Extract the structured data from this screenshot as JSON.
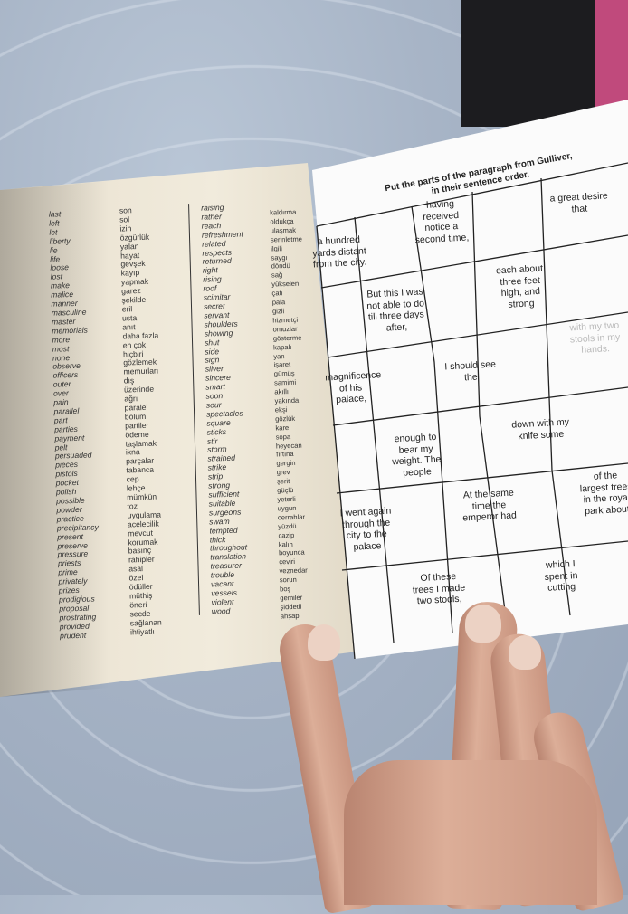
{
  "left_page": {
    "column1_english": [
      "last",
      "left",
      "let",
      "liberty",
      "lie",
      "life",
      "loose",
      "lost",
      "make",
      "malice",
      "manner",
      "masculine",
      "master",
      "memorials",
      "more",
      "most",
      "none",
      "observe",
      "officers",
      "outer",
      "over",
      "pain",
      "parallel",
      "part",
      "parties",
      "payment",
      "pelt",
      "persuaded",
      "pieces",
      "pistols",
      "pocket",
      "polish",
      "possible",
      "powder",
      "practice",
      "precipitancy",
      "present",
      "preserve",
      "pressure",
      "priests",
      "prime",
      "privately",
      "prizes",
      "prodigious",
      "proposal",
      "prostrating",
      "provided",
      "prudent"
    ],
    "column1_turkish": [
      "son",
      "sol",
      "izin",
      "özgürlük",
      "yalan",
      "hayat",
      "gevşek",
      "kayıp",
      "yapmak",
      "garez",
      "şekilde",
      "eril",
      "usta",
      "anıt",
      "daha fazla",
      "en çok",
      "hiçbiri",
      "gözlemek",
      "memurları",
      "dış",
      "üzerinde",
      "ağrı",
      "paralel",
      "bölüm",
      "partiler",
      "ödeme",
      "taşlamak",
      "ikna",
      "parçalar",
      "tabanca",
      "cep",
      "lehçe",
      "mümkün",
      "toz",
      "uygulama",
      "acelecilik",
      "mevcut",
      "korumak",
      "basınç",
      "rahipler",
      "asal",
      "özel",
      "ödüller",
      "müthiş",
      "öneri",
      "secde",
      "sağlanan",
      "ihtiyatlı"
    ],
    "column2_english": [
      "raising",
      "rather",
      "reach",
      "refreshment",
      "related",
      "respects",
      "returned",
      "right",
      "rising",
      "roof",
      "scimitar",
      "secret",
      "servant",
      "shoulders",
      "showing",
      "shut",
      "side",
      "sign",
      "silver",
      "sincere",
      "smart",
      "soon",
      "sour",
      "spectacles",
      "square",
      "sticks",
      "stir",
      "storm",
      "strained",
      "strike",
      "strip",
      "strong",
      "sufficient",
      "suitable",
      "surgeons",
      "swam",
      "tempted",
      "thick",
      "throughout",
      "translation",
      "treasurer",
      "trouble",
      "vacant",
      "vessels",
      "violent",
      "wood"
    ],
    "column2_turkish": [
      "kaldırma",
      "oldukça",
      "ulaşmak",
      "serinletme",
      "ilgili",
      "saygı",
      "döndü",
      "sağ",
      "yükselen",
      "çatı",
      "pala",
      "gizli",
      "hizmetçi",
      "omuzlar",
      "gösterme",
      "kapalı",
      "yan",
      "işaret",
      "gümüş",
      "samimi",
      "akıllı",
      "yakında",
      "ekşi",
      "gözlük",
      "kare",
      "sopa",
      "heyecan",
      "fırtına",
      "gergin",
      "grev",
      "şerit",
      "güçlü",
      "yeterli",
      "uygun",
      "cerrahlar",
      "yüzdü",
      "cazip",
      "kalın",
      "boyunca",
      "çeviri",
      "veznedar",
      "sorun",
      "boş",
      "gemiler",
      "şiddetli",
      "ahşap"
    ]
  },
  "right_page": {
    "title_line1": "Put the parts of the paragraph from Gulliver,",
    "title_line2": "in their sentence order.",
    "cells": [
      "a hundred yards distant from the city.",
      "having received notice a second time,",
      "a great desire that",
      "But this I was not able to do till three days after,",
      "each about three feet high, and strong",
      "with my two stools in my hands.",
      "magnificence of his palace,",
      "I should see the",
      "enough to bear my weight. The people",
      "down with my knife some",
      "of the largest trees in the royal park about",
      "I went again through the city to the palace",
      "At the same time the emperor had",
      "which I spent in cutting",
      "Of these trees I made two stools,"
    ]
  }
}
